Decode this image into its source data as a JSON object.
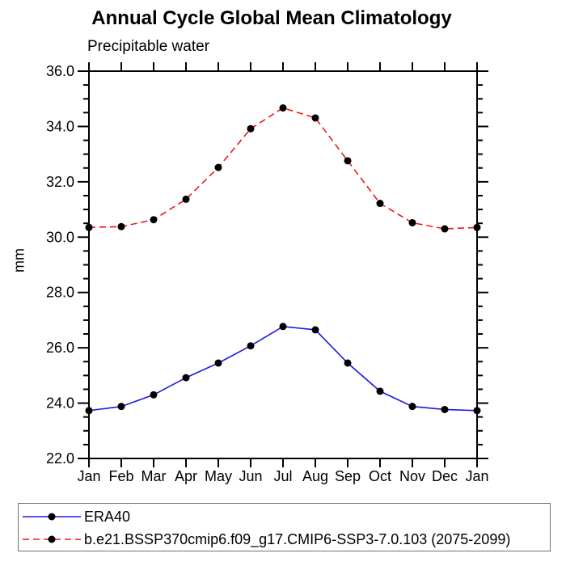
{
  "chart_data": {
    "type": "line",
    "title": "Annual Cycle Global Mean Climatology",
    "subtitle": "Precipitable water",
    "ylabel": "mm",
    "xlabel": "",
    "categories": [
      "Jan",
      "Feb",
      "Mar",
      "Apr",
      "May",
      "Jun",
      "Jul",
      "Aug",
      "Sep",
      "Oct",
      "Nov",
      "Dec",
      "Jan"
    ],
    "ylim": [
      22.0,
      36.0
    ],
    "ytick_step": 2.0,
    "yminor_step": 0.5,
    "ytick_label_format": "one-decimal",
    "grid": false,
    "legend_position": "bottom-outside-boxed",
    "series": [
      {
        "name": "ERA40",
        "color": "#1a1ae0",
        "line_style": "solid",
        "marker": "black-filled-circle",
        "values": [
          23.73,
          23.88,
          24.3,
          24.92,
          25.45,
          26.07,
          26.77,
          26.65,
          25.45,
          24.43,
          23.88,
          23.77,
          23.73
        ]
      },
      {
        "name": "b.e21.BSSP370cmip6.f09_g17.CMIP6-SSP3-7.0.103 (2075-2099)",
        "color": "#f01616",
        "line_style": "dashed",
        "marker": "black-filled-circle",
        "values": [
          30.35,
          30.38,
          30.63,
          31.37,
          32.52,
          33.92,
          34.67,
          34.31,
          32.76,
          31.22,
          30.52,
          30.3,
          30.35
        ]
      }
    ]
  },
  "style_colors": {
    "axis": "#000000",
    "marker": "#000000",
    "legend_border": "#707070",
    "background": "#ffffff"
  }
}
